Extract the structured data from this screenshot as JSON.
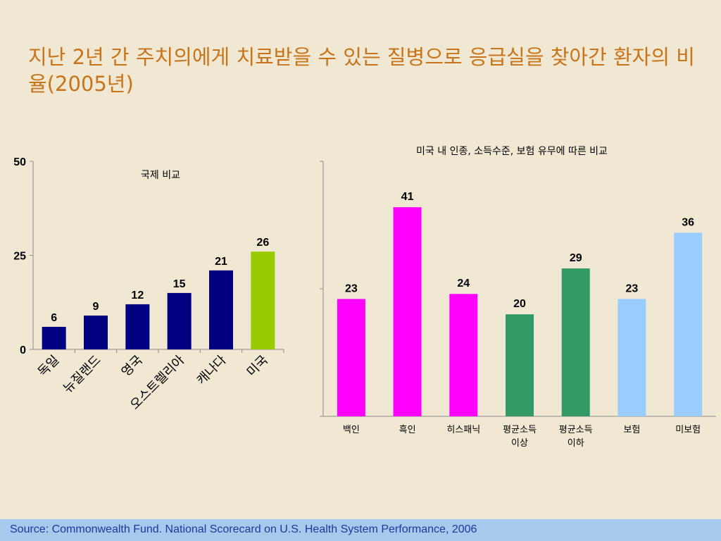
{
  "title": "지난 2년 간 주치의에게 치료받을 수 있는 질병으로 응급실을 찾아간 환자의 비율(2005년)",
  "footer": {
    "source": "Source: Commonwealth Fund. National Scorecard on U.S. Health System Performance, 2006"
  },
  "colors": {
    "navy": "#000080",
    "lime": "#99cc00",
    "magenta": "#ff00ff",
    "green": "#339966",
    "lightblue": "#99ccff",
    "title": "#c8741a",
    "footer_bg": "#a6c9ec"
  },
  "chart_data": [
    {
      "type": "bar",
      "title": "국제 비교",
      "categories": [
        "독일",
        "뉴질랜드",
        "영국",
        "오스트렐리아",
        "캐나다",
        "미국"
      ],
      "values": [
        6,
        9,
        12,
        15,
        21,
        26
      ],
      "bar_colors": [
        "#000080",
        "#000080",
        "#000080",
        "#000080",
        "#000080",
        "#99cc00"
      ],
      "ylim": [
        0,
        50
      ],
      "yticks": [
        "0",
        "25",
        "50"
      ],
      "data_labels": true,
      "grid": false
    },
    {
      "type": "bar",
      "title": "미국 내 인종, 소득수준, 보험 유무에 따른 비교",
      "categories": [
        "백인",
        "흑인",
        "히스패닉",
        "평균소득\n이상",
        "평균소득\n이하",
        "보험",
        "미보험"
      ],
      "values": [
        23,
        41,
        24,
        20,
        29,
        23,
        36
      ],
      "bar_colors": [
        "#ff00ff",
        "#ff00ff",
        "#ff00ff",
        "#339966",
        "#339966",
        "#99ccff",
        "#99ccff"
      ],
      "ylim": [
        0,
        50
      ],
      "data_labels": true,
      "grid": false
    }
  ]
}
